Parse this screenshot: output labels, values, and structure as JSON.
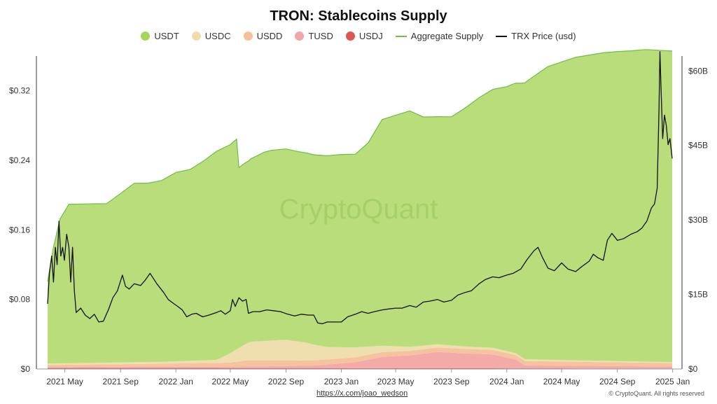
{
  "chart_data": {
    "type": "area",
    "title": "TRON: Stablecoins Supply",
    "x_ticks": [
      "2021 May",
      "2021 Sep",
      "2022 Jan",
      "2022 May",
      "2022 Sep",
      "2023 Jan",
      "2023 May",
      "2023 Sep",
      "2024 Jan",
      "2024 May",
      "2024 Sep",
      "2025 Jan"
    ],
    "y_left": {
      "label": "",
      "ticks": [
        "$0",
        "$0.08",
        "$0.16",
        "$0.24",
        "$0.32"
      ],
      "range": [
        0,
        0.36
      ]
    },
    "y_right": {
      "label": "",
      "ticks": [
        "$0",
        "$15B",
        "$30B",
        "$45B",
        "$60B"
      ],
      "range": [
        0,
        63
      ]
    },
    "grid": false,
    "legend_position": "top",
    "watermark": "CryptoQuant",
    "series": [
      {
        "name": "USDT",
        "kind": "area",
        "color": "#a8d45a",
        "points": [
          [
            "2021-03-24",
            16.5
          ],
          [
            "2021-04-05",
            23
          ],
          [
            "2021-04-20",
            29
          ],
          [
            "2021-05-10",
            32
          ],
          [
            "2021-06-01",
            32
          ],
          [
            "2021-07-01",
            32
          ],
          [
            "2021-08-01",
            32
          ],
          [
            "2021-09-01",
            34
          ],
          [
            "2021-10-01",
            36
          ],
          [
            "2021-11-01",
            36
          ],
          [
            "2021-12-01",
            36.5
          ],
          [
            "2022-01-01",
            38
          ],
          [
            "2022-02-01",
            38.5
          ],
          [
            "2022-03-01",
            40
          ],
          [
            "2022-04-01",
            42
          ],
          [
            "2022-05-01",
            42
          ],
          [
            "2022-05-15",
            42.3
          ],
          [
            "2022-05-20",
            36.3
          ],
          [
            "2022-06-10",
            36.6
          ],
          [
            "2022-07-15",
            38
          ],
          [
            "2022-08-01",
            38.3
          ],
          [
            "2022-09-01",
            38.4
          ],
          [
            "2022-10-01",
            38.2
          ],
          [
            "2022-11-01",
            38.2
          ],
          [
            "2022-12-01",
            38.5
          ],
          [
            "2023-01-01",
            38.8
          ],
          [
            "2023-02-01",
            38.9
          ],
          [
            "2023-03-01",
            41
          ],
          [
            "2023-04-01",
            45.5
          ],
          [
            "2023-05-01",
            46.5
          ],
          [
            "2023-06-01",
            47.5
          ],
          [
            "2023-07-01",
            46
          ],
          [
            "2023-08-01",
            45.8
          ],
          [
            "2023-09-01",
            46
          ],
          [
            "2023-10-01",
            48
          ],
          [
            "2023-11-01",
            50.2
          ],
          [
            "2023-12-01",
            52
          ],
          [
            "2024-01-01",
            53.2
          ],
          [
            "2024-02-01",
            55
          ],
          [
            "2024-03-01",
            57
          ],
          [
            "2024-04-01",
            59
          ],
          [
            "2024-05-01",
            60
          ],
          [
            "2024-06-01",
            61
          ],
          [
            "2024-07-01",
            61.5
          ],
          [
            "2024-08-01",
            62
          ],
          [
            "2024-09-01",
            62.3
          ],
          [
            "2024-10-01",
            62.5
          ],
          [
            "2024-11-01",
            62.8
          ],
          [
            "2024-12-01",
            62.7
          ],
          [
            "2024-12-31",
            62.6
          ]
        ]
      },
      {
        "name": "USDC",
        "kind": "area",
        "color": "#eedcaa",
        "points": [
          [
            "2021-03-24",
            0.3
          ],
          [
            "2021-12-01",
            0.4
          ],
          [
            "2022-04-01",
            0.6
          ],
          [
            "2022-05-15",
            2.5
          ],
          [
            "2022-06-15",
            3.8
          ],
          [
            "2022-09-01",
            4.2
          ],
          [
            "2022-10-15",
            3.6
          ],
          [
            "2022-12-01",
            2.5
          ],
          [
            "2023-02-01",
            2.0
          ],
          [
            "2023-04-01",
            1.3
          ],
          [
            "2023-06-01",
            0.8
          ],
          [
            "2023-10-01",
            0.5
          ],
          [
            "2024-06-01",
            0.3
          ],
          [
            "2024-12-31",
            0.2
          ]
        ]
      },
      {
        "name": "USDD",
        "kind": "area",
        "color": "#f5c09a",
        "points": [
          [
            "2021-03-24",
            0.4
          ],
          [
            "2021-12-01",
            0.6
          ],
          [
            "2022-05-01",
            0.8
          ],
          [
            "2022-06-01",
            1.2
          ],
          [
            "2022-09-01",
            1.1
          ],
          [
            "2023-01-01",
            1.0
          ],
          [
            "2023-06-01",
            0.9
          ],
          [
            "2024-01-01",
            0.9
          ],
          [
            "2024-06-01",
            0.8
          ],
          [
            "2024-12-31",
            0.7
          ]
        ]
      },
      {
        "name": "TUSD",
        "kind": "area",
        "color": "#f4a5a5",
        "points": [
          [
            "2021-03-24",
            0.2
          ],
          [
            "2022-06-01",
            0.3
          ],
          [
            "2022-11-01",
            0.5
          ],
          [
            "2023-02-01",
            1.2
          ],
          [
            "2023-04-01",
            2.3
          ],
          [
            "2023-06-01",
            2.6
          ],
          [
            "2023-08-01",
            3.3
          ],
          [
            "2023-10-01",
            3.0
          ],
          [
            "2023-12-01",
            2.8
          ],
          [
            "2024-01-20",
            1.8
          ],
          [
            "2024-02-10",
            0.6
          ],
          [
            "2024-12-31",
            0.4
          ]
        ]
      },
      {
        "name": "USDJ",
        "kind": "area",
        "color": "#dd5555",
        "points": [
          [
            "2021-03-24",
            0.2
          ],
          [
            "2022-01-01",
            0.2
          ],
          [
            "2023-06-01",
            0.15
          ],
          [
            "2024-12-31",
            0.1
          ]
        ]
      },
      {
        "name": "Aggregate Supply",
        "kind": "line",
        "color": "#6cbe45"
      },
      {
        "name": "TRX Price (usd)",
        "kind": "line",
        "color": "#111111",
        "points": [
          [
            "2021-03-24",
            0.075
          ],
          [
            "2021-03-28",
            0.11
          ],
          [
            "2021-04-02",
            0.13
          ],
          [
            "2021-04-06",
            0.1
          ],
          [
            "2021-04-10",
            0.14
          ],
          [
            "2021-04-14",
            0.12
          ],
          [
            "2021-04-18",
            0.17
          ],
          [
            "2021-04-22",
            0.13
          ],
          [
            "2021-04-26",
            0.14
          ],
          [
            "2021-04-30",
            0.125
          ],
          [
            "2021-05-05",
            0.155
          ],
          [
            "2021-05-10",
            0.14
          ],
          [
            "2021-05-14",
            0.1
          ],
          [
            "2021-05-18",
            0.14
          ],
          [
            "2021-05-22",
            0.09
          ],
          [
            "2021-05-26",
            0.065
          ],
          [
            "2021-06-05",
            0.07
          ],
          [
            "2021-06-15",
            0.062
          ],
          [
            "2021-06-25",
            0.058
          ],
          [
            "2021-07-05",
            0.063
          ],
          [
            "2021-07-15",
            0.054
          ],
          [
            "2021-07-25",
            0.055
          ],
          [
            "2021-08-05",
            0.068
          ],
          [
            "2021-08-15",
            0.082
          ],
          [
            "2021-08-25",
            0.09
          ],
          [
            "2021-09-05",
            0.108
          ],
          [
            "2021-09-12",
            0.095
          ],
          [
            "2021-09-20",
            0.092
          ],
          [
            "2021-10-01",
            0.098
          ],
          [
            "2021-10-15",
            0.096
          ],
          [
            "2021-10-25",
            0.102
          ],
          [
            "2021-11-05",
            0.11
          ],
          [
            "2021-11-20",
            0.098
          ],
          [
            "2021-12-05",
            0.088
          ],
          [
            "2021-12-15",
            0.08
          ],
          [
            "2021-12-25",
            0.076
          ],
          [
            "2022-01-05",
            0.072
          ],
          [
            "2022-01-15",
            0.068
          ],
          [
            "2022-01-25",
            0.06
          ],
          [
            "2022-02-05",
            0.063
          ],
          [
            "2022-02-15",
            0.064
          ],
          [
            "2022-03-01",
            0.06
          ],
          [
            "2022-03-15",
            0.062
          ],
          [
            "2022-04-01",
            0.065
          ],
          [
            "2022-04-10",
            0.067
          ],
          [
            "2022-04-20",
            0.063
          ],
          [
            "2022-05-01",
            0.067
          ],
          [
            "2022-05-06",
            0.08
          ],
          [
            "2022-05-12",
            0.072
          ],
          [
            "2022-05-20",
            0.082
          ],
          [
            "2022-05-28",
            0.078
          ],
          [
            "2022-06-05",
            0.08
          ],
          [
            "2022-06-10",
            0.064
          ],
          [
            "2022-06-20",
            0.066
          ],
          [
            "2022-07-05",
            0.066
          ],
          [
            "2022-07-20",
            0.068
          ],
          [
            "2022-08-05",
            0.067
          ],
          [
            "2022-08-20",
            0.066
          ],
          [
            "2022-09-05",
            0.063
          ],
          [
            "2022-09-20",
            0.061
          ],
          [
            "2022-10-05",
            0.063
          ],
          [
            "2022-10-20",
            0.062
          ],
          [
            "2022-11-01",
            0.062
          ],
          [
            "2022-11-10",
            0.053
          ],
          [
            "2022-11-20",
            0.052
          ],
          [
            "2022-12-01",
            0.054
          ],
          [
            "2022-12-15",
            0.054
          ],
          [
            "2023-01-01",
            0.054
          ],
          [
            "2023-01-15",
            0.06
          ],
          [
            "2023-02-01",
            0.063
          ],
          [
            "2023-02-15",
            0.066
          ],
          [
            "2023-03-01",
            0.064
          ],
          [
            "2023-03-15",
            0.066
          ],
          [
            "2023-04-01",
            0.068
          ],
          [
            "2023-04-15",
            0.069
          ],
          [
            "2023-05-01",
            0.07
          ],
          [
            "2023-05-15",
            0.07
          ],
          [
            "2023-06-01",
            0.073
          ],
          [
            "2023-06-15",
            0.071
          ],
          [
            "2023-07-01",
            0.077
          ],
          [
            "2023-07-15",
            0.078
          ],
          [
            "2023-08-01",
            0.08
          ],
          [
            "2023-08-15",
            0.077
          ],
          [
            "2023-09-01",
            0.079
          ],
          [
            "2023-09-15",
            0.085
          ],
          [
            "2023-10-01",
            0.088
          ],
          [
            "2023-10-15",
            0.09
          ],
          [
            "2023-11-01",
            0.098
          ],
          [
            "2023-11-15",
            0.103
          ],
          [
            "2023-12-01",
            0.106
          ],
          [
            "2023-12-15",
            0.105
          ],
          [
            "2024-01-01",
            0.108
          ],
          [
            "2024-01-15",
            0.11
          ],
          [
            "2024-02-01",
            0.115
          ],
          [
            "2024-02-15",
            0.126
          ],
          [
            "2024-03-01",
            0.136
          ],
          [
            "2024-03-10",
            0.14
          ],
          [
            "2024-03-20",
            0.128
          ],
          [
            "2024-04-01",
            0.116
          ],
          [
            "2024-04-15",
            0.113
          ],
          [
            "2024-05-01",
            0.122
          ],
          [
            "2024-05-15",
            0.115
          ],
          [
            "2024-06-01",
            0.112
          ],
          [
            "2024-06-15",
            0.118
          ],
          [
            "2024-07-01",
            0.124
          ],
          [
            "2024-07-10",
            0.132
          ],
          [
            "2024-07-20",
            0.128
          ],
          [
            "2024-08-01",
            0.125
          ],
          [
            "2024-08-10",
            0.148
          ],
          [
            "2024-08-20",
            0.156
          ],
          [
            "2024-09-01",
            0.148
          ],
          [
            "2024-09-15",
            0.15
          ],
          [
            "2024-10-01",
            0.155
          ],
          [
            "2024-10-15",
            0.158
          ],
          [
            "2024-10-25",
            0.162
          ],
          [
            "2024-11-05",
            0.17
          ],
          [
            "2024-11-15",
            0.185
          ],
          [
            "2024-11-22",
            0.19
          ],
          [
            "2024-11-28",
            0.208
          ],
          [
            "2024-12-02",
            0.3
          ],
          [
            "2024-12-04",
            0.365
          ],
          [
            "2024-12-06",
            0.33
          ],
          [
            "2024-12-10",
            0.265
          ],
          [
            "2024-12-14",
            0.292
          ],
          [
            "2024-12-18",
            0.28
          ],
          [
            "2024-12-22",
            0.258
          ],
          [
            "2024-12-26",
            0.265
          ],
          [
            "2024-12-31",
            0.242
          ]
        ]
      }
    ]
  },
  "footer": {
    "link": "https://x.com/joao_wedson",
    "copyright": "© CryptoQuant. All rights reserved"
  }
}
